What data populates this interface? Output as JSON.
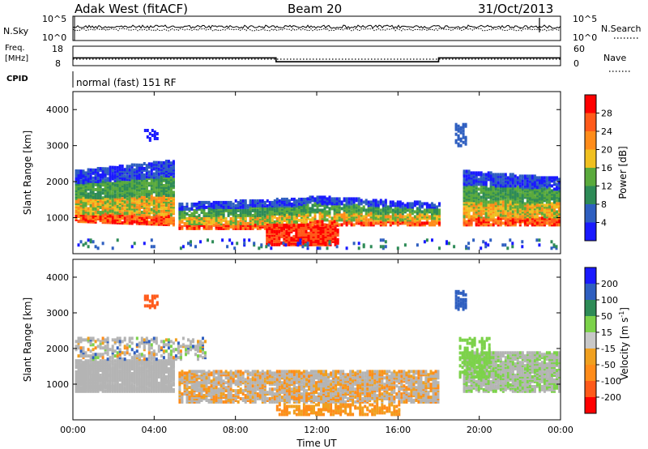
{
  "header": {
    "station": "Adak West (fitACF)",
    "beam": "Beam 20",
    "date": "31/Oct/2013"
  },
  "panels": {
    "nsky_label": "N.Sky",
    "nsearch_label": "N.Search",
    "freq_label_1": "Freq.",
    "freq_label_2": "[MHz]",
    "nave_label": "Nave",
    "cpid_label": "CPID",
    "cpid_text": "normal (fast) 151 RF",
    "noise_ticks": [
      "10^5",
      "10^0"
    ],
    "freq_ticks_left": [
      "18",
      "8"
    ],
    "freq_ticks_right": [
      "60",
      "0"
    ]
  },
  "colors": {
    "power_scale": [
      "#1a1aff",
      "#2f5fc0",
      "#2e8b57",
      "#5aaa3c",
      "#f0c020",
      "#ff8c1a",
      "#ff5a1a",
      "#ff0000"
    ],
    "velocity_scale": [
      "#ff0000",
      "#ff5a1a",
      "#ff8c1a",
      "#f0a020",
      "#c8c8c8",
      "#7cd24a",
      "#2e8b57",
      "#2f5fc0",
      "#1a1aff"
    ],
    "ground_scatter": "#b4b4b4"
  },
  "chart_data": [
    {
      "type": "line",
      "title": "N.Sky / N.Search",
      "x": [
        "00:00",
        "04:00",
        "08:00",
        "12:00",
        "16:00",
        "20:00",
        "00:00"
      ],
      "yscale": "log",
      "ylim": [
        1,
        100000
      ]
    },
    {
      "type": "line",
      "title": "Freq. [MHz] / Nave",
      "x": [
        "00:00",
        "10:00",
        "10:00",
        "18:00",
        "18:00",
        "00:00"
      ],
      "series": [
        {
          "name": "Freq.",
          "values": [
            12,
            12,
            10,
            10,
            12,
            12
          ]
        },
        {
          "name": "Nave",
          "values": [
            30,
            30,
            30,
            30,
            30,
            30
          ]
        }
      ],
      "ylim": [
        8,
        18
      ]
    },
    {
      "type": "heatmap",
      "quantity": "Power",
      "xlabel": "Time UT",
      "ylabel": "Slant Range [km]",
      "xticks": [
        "00:00",
        "04:00",
        "08:00",
        "12:00",
        "16:00",
        "20:00",
        "00:00"
      ],
      "yticks": [
        "1000",
        "2000",
        "3000",
        "4000"
      ],
      "ylim": [
        0,
        4500
      ],
      "colorbar_label": "Power [dB]",
      "colorbar_ticks": [
        "4",
        "8",
        "12",
        "16",
        "20",
        "24",
        "28"
      ],
      "colorbar_range": [
        0,
        30
      ]
    },
    {
      "type": "heatmap",
      "quantity": "Velocity",
      "xlabel": "Time UT",
      "ylabel": "Slant Range [km]",
      "xticks": [
        "00:00",
        "04:00",
        "08:00",
        "12:00",
        "16:00",
        "20:00",
        "00:00"
      ],
      "yticks": [
        "1000",
        "2000",
        "3000",
        "4000"
      ],
      "ylim": [
        0,
        4500
      ],
      "colorbar_label": "Velocity [m s^-1]",
      "colorbar_ticks": [
        "200",
        "100",
        "50",
        "15",
        "-15",
        "-50",
        "-100",
        "-200"
      ],
      "colorbar_range": [
        -250,
        250
      ]
    }
  ],
  "axes": {
    "xlabel": "Time UT",
    "ylabel": "Slant Range [km]",
    "power_cbar_label": "Power [dB]",
    "velocity_cbar_label": "Velocity [m s",
    "velocity_cbar_exp": "-1",
    "velocity_cbar_end": "]"
  }
}
